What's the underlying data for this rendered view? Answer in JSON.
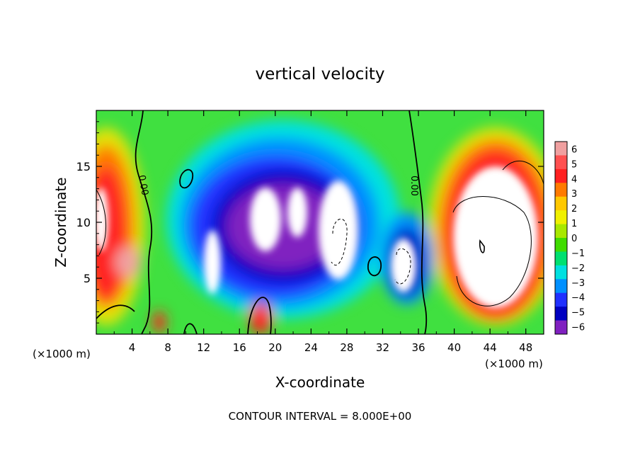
{
  "chart_data": {
    "type": "heatmap",
    "title": "vertical velocity",
    "xlabel": "X-coordinate",
    "ylabel": "Z-coordinate",
    "x_units_left": "(×1000 m)",
    "x_units_right": "(×1000 m)",
    "footer": "CONTOUR INTERVAL = 8.000E+00",
    "xlim": [
      0,
      50
    ],
    "ylim": [
      0,
      20
    ],
    "x_ticks": [
      4,
      8,
      12,
      16,
      20,
      24,
      28,
      32,
      36,
      40,
      44,
      48
    ],
    "x_tick_labels": [
      "4",
      "8",
      "12",
      "16",
      "20",
      "24",
      "28",
      "32",
      "36",
      "40",
      "44",
      "48"
    ],
    "y_ticks": [
      5,
      10,
      15
    ],
    "y_tick_labels": [
      "5",
      "10",
      "15"
    ],
    "contour_labels": [
      {
        "text": "0.00",
        "x": 5.2,
        "y": 13.5
      },
      {
        "text": "0.00",
        "x": 35.3,
        "y": 13.5
      }
    ],
    "colorbar": {
      "levels": [
        6,
        5,
        4,
        3,
        2,
        1,
        0,
        -1,
        -2,
        -3,
        -4,
        -5,
        -6
      ],
      "level_labels": [
        "6",
        "5",
        "4",
        "3",
        "2",
        "1",
        "0",
        "−1",
        "−2",
        "−3",
        "−4",
        "−5",
        "−6"
      ],
      "colors": [
        "#f0a0a0",
        "#ff5050",
        "#ff2020",
        "#ff7a00",
        "#ffc800",
        "#f0f000",
        "#a8e800",
        "#40dc00",
        "#00e070",
        "#00e0e0",
        "#0090ff",
        "#2030ff",
        "#0000c0",
        "#8020c0"
      ]
    },
    "grid": false,
    "colors": {
      "background": "#40e040",
      "saturated_up": "#ffffff",
      "saturated_down": "#ffffff",
      "contour": "#000000"
    }
  }
}
